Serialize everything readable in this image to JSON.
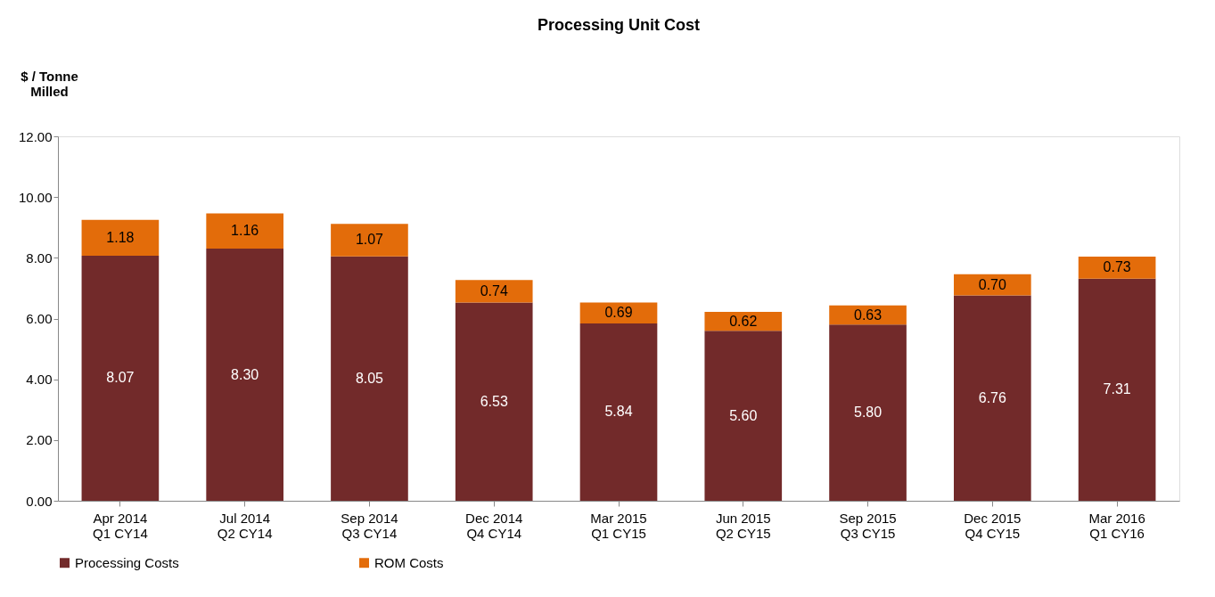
{
  "chart_data": {
    "type": "bar",
    "title": "Processing Unit Cost",
    "ylabel": "$ / Tonne\nMilled",
    "categories": [
      "Apr 2014\nQ1 CY14",
      "Jul 2014\nQ2 CY14",
      "Sep 2014\nQ3 CY14",
      "Dec 2014\nQ4 CY14",
      "Mar 2015\nQ1 CY15",
      "Jun 2015\nQ2 CY15",
      "Sep 2015\nQ3 CY15",
      "Dec 2015\nQ4 CY15",
      "Mar 2016\nQ1 CY16"
    ],
    "series": [
      {
        "name": "Processing Costs",
        "color": "#722a2a",
        "values": [
          8.07,
          8.3,
          8.05,
          6.53,
          5.84,
          5.6,
          5.8,
          6.76,
          7.31
        ],
        "value_labels": [
          "8.07",
          "8.30",
          "8.05",
          "6.53",
          "5.84",
          "5.60",
          "5.80",
          "6.76",
          "7.31"
        ]
      },
      {
        "name": "ROM Costs",
        "color": "#e36c0a",
        "values": [
          1.18,
          1.16,
          1.07,
          0.74,
          0.69,
          0.62,
          0.63,
          0.7,
          0.73
        ],
        "value_labels": [
          "1.18",
          "1.16",
          "1.07",
          "0.74",
          "0.69",
          "0.62",
          "0.63",
          "0.70",
          "0.73"
        ]
      }
    ],
    "stacked": true,
    "ylim": [
      0,
      12
    ],
    "yticks": [
      {
        "value": 0,
        "label": "0.00"
      },
      {
        "value": 2,
        "label": "2.00"
      },
      {
        "value": 4,
        "label": "4.00"
      },
      {
        "value": 6,
        "label": "6.00"
      },
      {
        "value": 8,
        "label": "8.00"
      },
      {
        "value": 10,
        "label": "10.00"
      },
      {
        "value": 12,
        "label": "12.00"
      }
    ],
    "grid": false,
    "legend": "bottom"
  }
}
